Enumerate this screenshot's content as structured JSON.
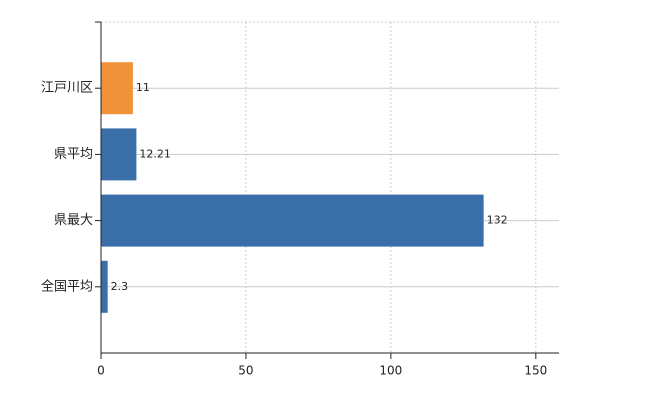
{
  "chart_data": {
    "type": "barh",
    "categories": [
      "江戸川区",
      "県平均",
      "県最大",
      "全国平均"
    ],
    "values": [
      11,
      12.21,
      132,
      2.3
    ],
    "colors": [
      "#f0923a",
      "#3a6ea8",
      "#3a6ea8",
      "#3a6ea8"
    ],
    "xlim": [
      0,
      158
    ],
    "xticks": [
      0,
      50,
      100,
      150
    ],
    "grid": true
  }
}
